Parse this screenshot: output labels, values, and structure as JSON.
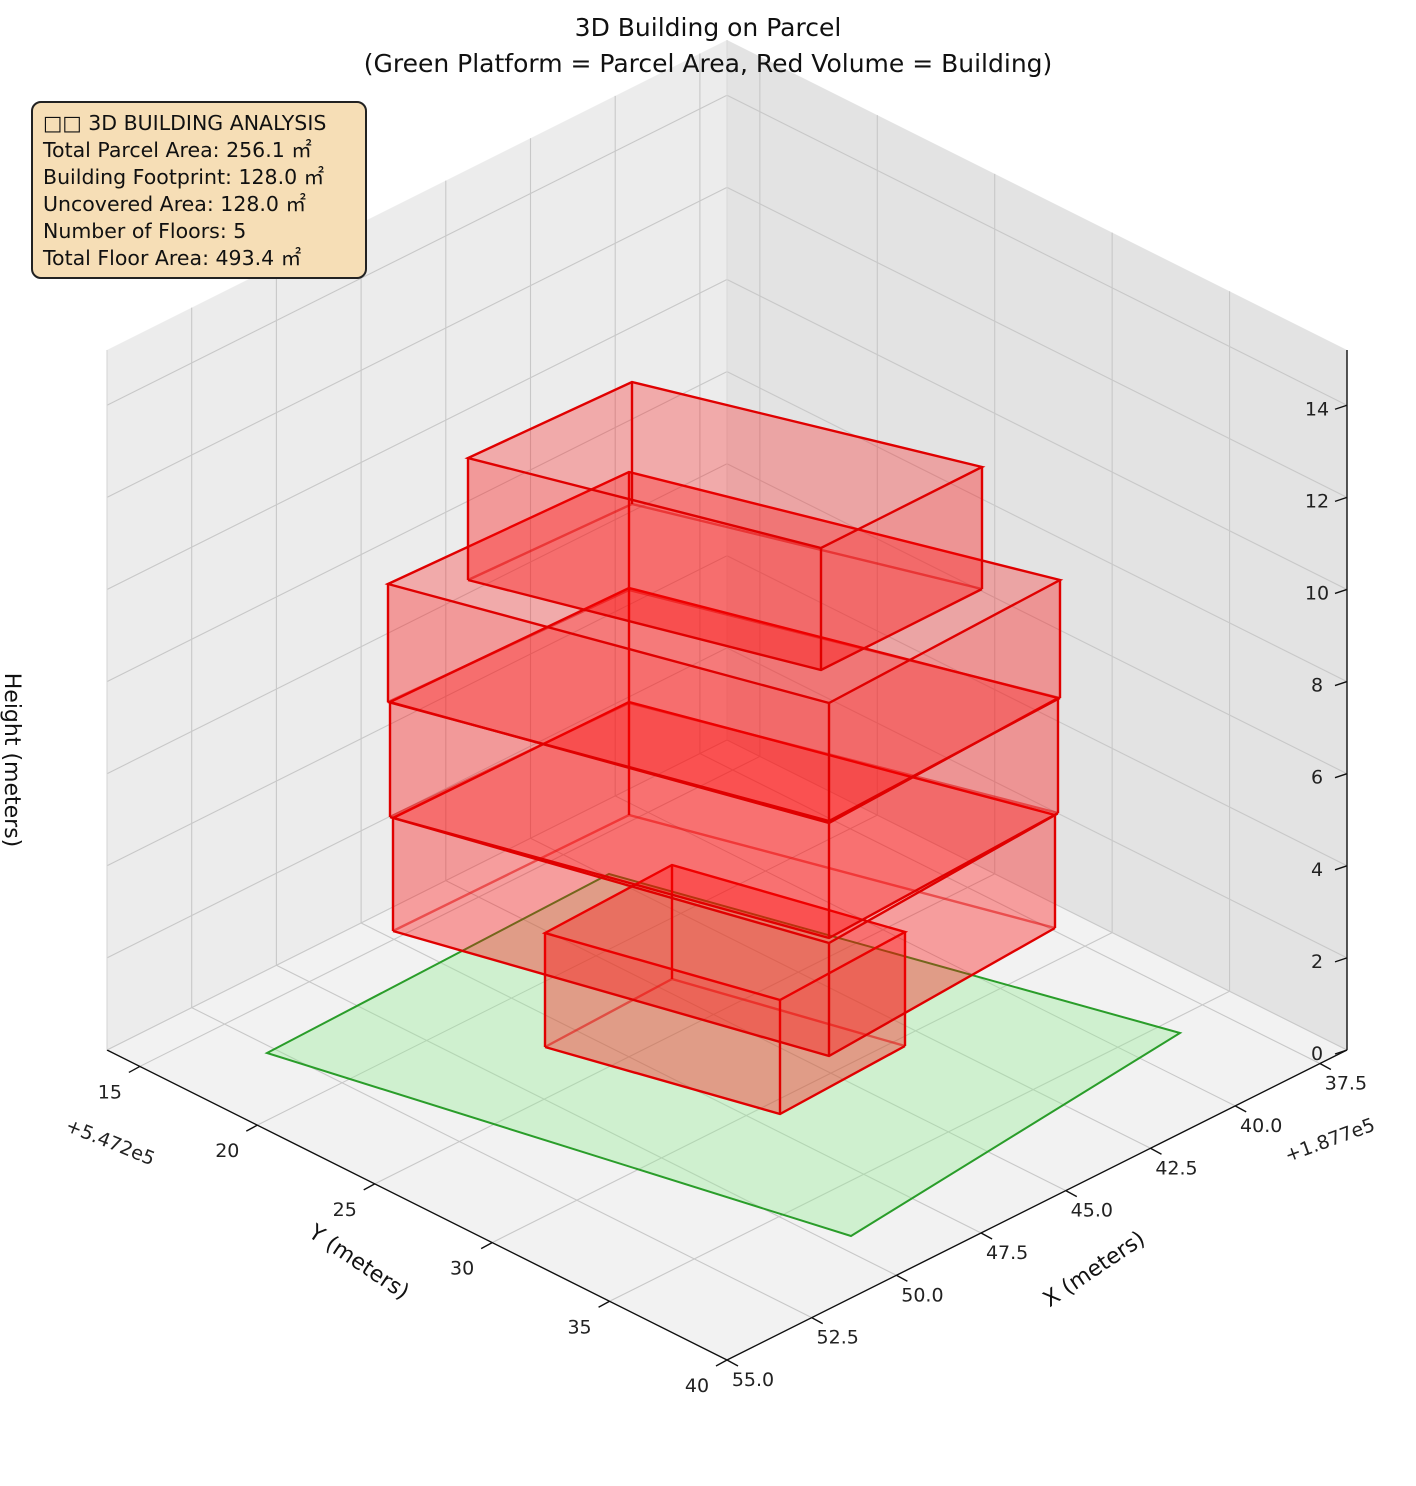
{
  "chart_data": {
    "type": "3d-bar",
    "title": "3D Building on Parcel\n(Green Platform = Parcel Area, Red Volume = Building)",
    "xlabel": "X (meters)",
    "ylabel": "Y (meters)",
    "zlabel": "Height (meters)",
    "x_offset_label": "+1.877e5",
    "y_offset_label": "+5.472e5",
    "x_ticks": [
      "37.5",
      "40.0",
      "42.5",
      "45.0",
      "47.5",
      "50.0",
      "52.5",
      "55.0"
    ],
    "y_ticks": [
      "15",
      "20",
      "25",
      "30",
      "35",
      "40"
    ],
    "z_ticks": [
      "0",
      "2",
      "4",
      "6",
      "8",
      "10",
      "12",
      "14"
    ],
    "grid": true,
    "parcel": {
      "color": "#90ee90",
      "edge": "#2a9d2a"
    },
    "building": {
      "color": "#ff0000",
      "edge": "#e00000"
    },
    "info_box": [
      "□□ 3D BUILDING ANALYSIS",
      "Total Parcel Area: 256.1 ㎡",
      "Building Footprint: 128.0 ㎡",
      "Uncovered Area: 128.0 ㎡",
      "Number of Floors: 5",
      "Total Floor Area: 493.4 ㎡"
    ]
  }
}
